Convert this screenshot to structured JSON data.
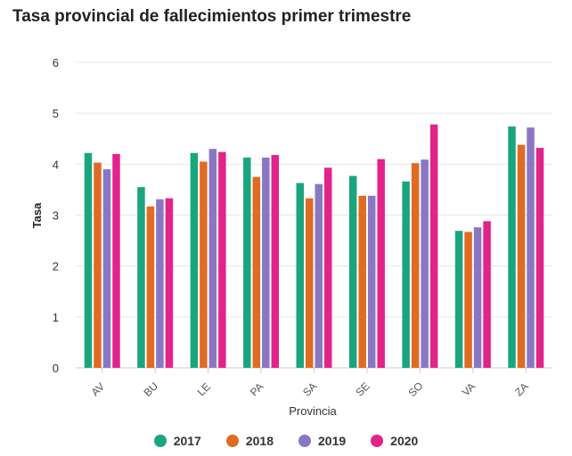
{
  "title": "Tasa provincial de fallecimientos primer trimestre",
  "chart_data": {
    "type": "bar",
    "title": "Tasa provincial de fallecimientos primer trimestre",
    "xlabel": "Provincia",
    "ylabel": "Tasa",
    "ylim": [
      0,
      6
    ],
    "yticks": [
      0,
      1,
      2,
      3,
      4,
      5,
      6
    ],
    "grid": true,
    "legend_position": "bottom",
    "categories": [
      "AV",
      "BU",
      "LE",
      "PA",
      "SA",
      "SE",
      "SO",
      "VA",
      "ZA"
    ],
    "series": [
      {
        "name": "2017",
        "color": "#1aa57f",
        "values": [
          4.22,
          3.55,
          4.22,
          4.13,
          3.63,
          3.77,
          3.66,
          2.69,
          4.74
        ]
      },
      {
        "name": "2018",
        "color": "#e06b22",
        "values": [
          4.03,
          3.17,
          4.05,
          3.75,
          3.33,
          3.38,
          4.02,
          2.67,
          4.38
        ]
      },
      {
        "name": "2019",
        "color": "#8a77c4",
        "values": [
          3.9,
          3.31,
          4.3,
          4.13,
          3.61,
          3.38,
          4.09,
          2.76,
          4.72
        ]
      },
      {
        "name": "2020",
        "color": "#e2238a",
        "values": [
          4.2,
          3.33,
          4.24,
          4.18,
          3.93,
          4.1,
          4.78,
          2.88,
          4.32
        ]
      }
    ]
  }
}
